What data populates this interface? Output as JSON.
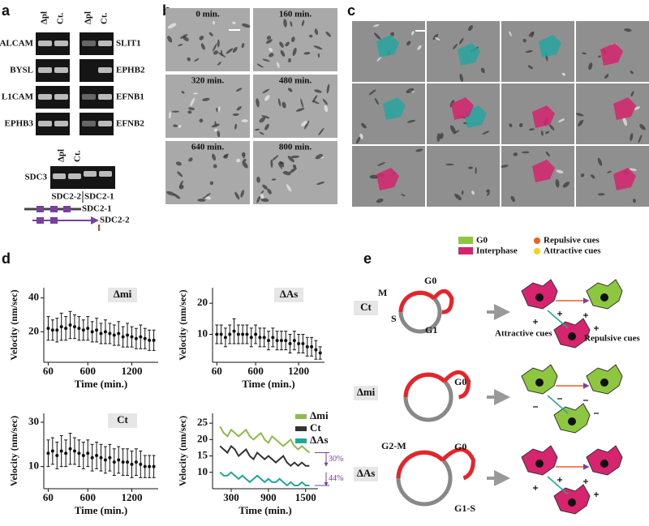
{
  "panel_labels": [
    "a",
    "b",
    "c",
    "d",
    "e"
  ],
  "gel": {
    "lanes_top": [
      "Δpl",
      "Ct.",
      "Δpl",
      "Ct."
    ],
    "left_genes": [
      "ALCAM",
      "BYSL",
      "L1CAM",
      "EPHB3"
    ],
    "right_genes": [
      "SLIT1",
      "EPHB2",
      "EFNB1",
      "EFNB2"
    ],
    "sdc3": "SDC3",
    "lanes_bottom_top": [
      "Δpl",
      "Ct."
    ],
    "lanes_bottom": [
      "SDC2-2",
      "SDC2-1"
    ],
    "isoforms": [
      "SDC2-1",
      "SDC2-2"
    ]
  },
  "timelapse": {
    "times": [
      "0 min.",
      "160 min.",
      "320 min.",
      "480 min.",
      "640 min.",
      "800 min."
    ]
  },
  "diagram": {
    "legend": {
      "phases": [
        {
          "name": "G0",
          "color": "#8dc63f"
        },
        {
          "name": "Interphase",
          "color": "#d6246e"
        }
      ],
      "cues": [
        {
          "name": "Repulsive cues",
          "color": "#f15a29"
        },
        {
          "name": "Attractive cues",
          "color": "#f7d117"
        }
      ]
    },
    "rows": [
      {
        "label": "Ct",
        "phases": [
          "M",
          "G0",
          "S",
          "G1"
        ],
        "notes": [
          "Attractive cues",
          "Repulsive cues"
        ]
      },
      {
        "label": "Δmi",
        "phases": [
          "G0"
        ]
      },
      {
        "label": "ΔAs",
        "phases": [
          "G2-M",
          "G0",
          "G1-S"
        ]
      }
    ]
  },
  "chart_data": [
    {
      "type": "errorbar",
      "title": "Δmi",
      "xlabel": "Time (min.)",
      "ylabel": "Velocity (nm/sec)",
      "x": [
        60,
        120,
        180,
        240,
        300,
        360,
        420,
        480,
        540,
        600,
        660,
        720,
        780,
        840,
        900,
        960,
        1020,
        1080,
        1140,
        1200,
        1260,
        1320,
        1380,
        1440,
        1500
      ],
      "values": [
        22,
        21,
        21,
        23,
        22,
        24,
        23,
        22,
        21,
        22,
        20,
        21,
        19,
        20,
        19,
        18,
        19,
        17,
        18,
        17,
        16,
        17,
        16,
        15,
        15
      ],
      "errors": [
        7,
        6,
        7,
        8,
        7,
        8,
        7,
        7,
        6,
        7,
        6,
        7,
        6,
        7,
        6,
        6,
        7,
        6,
        7,
        6,
        6,
        7,
        6,
        6,
        6
      ],
      "xlim": [
        0,
        1560
      ],
      "xticks": [
        60,
        600,
        1200
      ],
      "ylim": [
        2,
        46
      ],
      "yticks": [
        20,
        40
      ],
      "color": "#111111"
    },
    {
      "type": "errorbar",
      "title": "ΔAs",
      "xlabel": "Time (min.)",
      "ylabel": "Velocity (nm/sec)",
      "x": [
        60,
        120,
        180,
        240,
        300,
        360,
        420,
        480,
        540,
        600,
        660,
        720,
        780,
        840,
        900,
        960,
        1020,
        1080,
        1140,
        1200,
        1260,
        1320,
        1380,
        1440,
        1500
      ],
      "values": [
        10,
        10,
        9,
        10,
        11,
        10,
        10,
        10,
        9,
        10,
        9,
        9,
        8,
        9,
        8,
        8,
        8,
        7,
        8,
        7,
        7,
        6,
        6,
        5,
        4
      ],
      "errors": [
        3,
        3,
        3,
        3,
        4,
        3,
        3,
        3,
        3,
        3,
        3,
        3,
        3,
        3,
        3,
        3,
        3,
        3,
        3,
        3,
        3,
        3,
        3,
        3,
        2
      ],
      "xlim": [
        0,
        1560
      ],
      "xticks": [
        60,
        600,
        1200
      ],
      "ylim": [
        1,
        25
      ],
      "yticks": [
        10,
        20
      ],
      "color": "#111111"
    },
    {
      "type": "errorbar",
      "title": "Ct",
      "xlabel": "Time (min.)",
      "ylabel": "Velocity (nm/sec)",
      "x": [
        60,
        120,
        180,
        240,
        300,
        360,
        420,
        480,
        540,
        600,
        660,
        720,
        780,
        840,
        900,
        960,
        1020,
        1080,
        1140,
        1200,
        1260,
        1320,
        1380,
        1440,
        1500
      ],
      "values": [
        16,
        17,
        15,
        17,
        16,
        18,
        17,
        16,
        15,
        16,
        14,
        15,
        14,
        13,
        14,
        12,
        13,
        12,
        12,
        11,
        12,
        11,
        10,
        10,
        10
      ],
      "errors": [
        6,
        6,
        6,
        7,
        6,
        7,
        6,
        6,
        6,
        6,
        6,
        6,
        6,
        6,
        6,
        6,
        6,
        6,
        6,
        6,
        6,
        6,
        5,
        5,
        5
      ],
      "xlim": [
        0,
        1560
      ],
      "xticks": [
        60,
        600,
        1200
      ],
      "ylim": [
        0,
        34
      ],
      "yticks": [
        10,
        30
      ],
      "color": "#111111"
    },
    {
      "type": "line",
      "xlabel": "Time (min.)",
      "ylabel": "Velocity (nm/sec)",
      "x": [
        120,
        180,
        240,
        300,
        360,
        420,
        480,
        540,
        600,
        660,
        720,
        780,
        840,
        900,
        960,
        1020,
        1080,
        1140,
        1200,
        1260,
        1320,
        1380,
        1440,
        1500,
        1560
      ],
      "series": [
        {
          "name": "Δmi",
          "color": "#8dbb4c",
          "values": [
            24,
            22,
            21,
            23,
            22,
            21,
            22,
            23,
            21,
            20,
            21,
            22,
            20,
            19,
            21,
            20,
            19,
            18,
            19,
            20,
            18,
            17,
            18,
            17,
            16
          ]
        },
        {
          "name": "Ct",
          "color": "#333333",
          "values": [
            18,
            17,
            16,
            18,
            17,
            15,
            16,
            17,
            15,
            14,
            16,
            15,
            14,
            15,
            14,
            13,
            14,
            15,
            13,
            12,
            13,
            12,
            13,
            12,
            12
          ]
        },
        {
          "name": "ΔAs",
          "color": "#1fa79a",
          "values": [
            10,
            9,
            9,
            10,
            9,
            8,
            9,
            8,
            7,
            8,
            9,
            8,
            7,
            8,
            7,
            7,
            8,
            7,
            6,
            7,
            6,
            6,
            7,
            6,
            6
          ]
        }
      ],
      "annotations": [
        "30%",
        "44%"
      ],
      "annotation_color": "#7b3f9e",
      "xlim": [
        0,
        1700
      ],
      "xticks": [
        300,
        900,
        1500
      ],
      "ylim": [
        5,
        28
      ],
      "yticks": [
        10,
        15,
        20,
        25
      ]
    }
  ]
}
